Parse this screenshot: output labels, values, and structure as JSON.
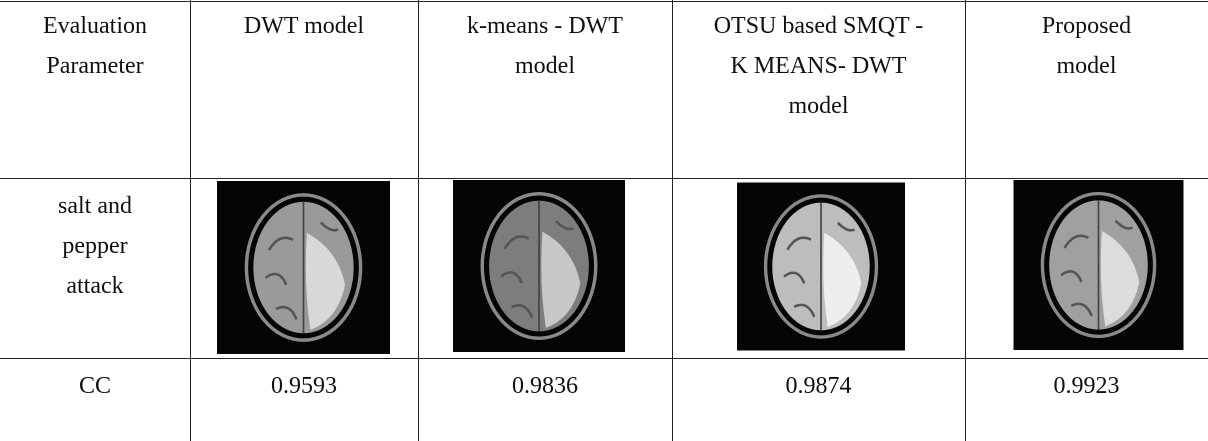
{
  "table": {
    "header": [
      [
        "Evaluation",
        "Parameter"
      ],
      [
        "DWT model"
      ],
      [
        "k-means - DWT",
        "model"
      ],
      [
        "OTSU based SMQT -",
        "K MEANS- DWT",
        "model"
      ],
      [
        "Proposed",
        "model"
      ]
    ],
    "rows": [
      {
        "label": [
          "salt and",
          "pepper",
          "attack"
        ]
      },
      {
        "label": [
          "CC"
        ],
        "cells": [
          "0.9593",
          "0.9836",
          "0.9874",
          "0.9923"
        ]
      }
    ]
  }
}
